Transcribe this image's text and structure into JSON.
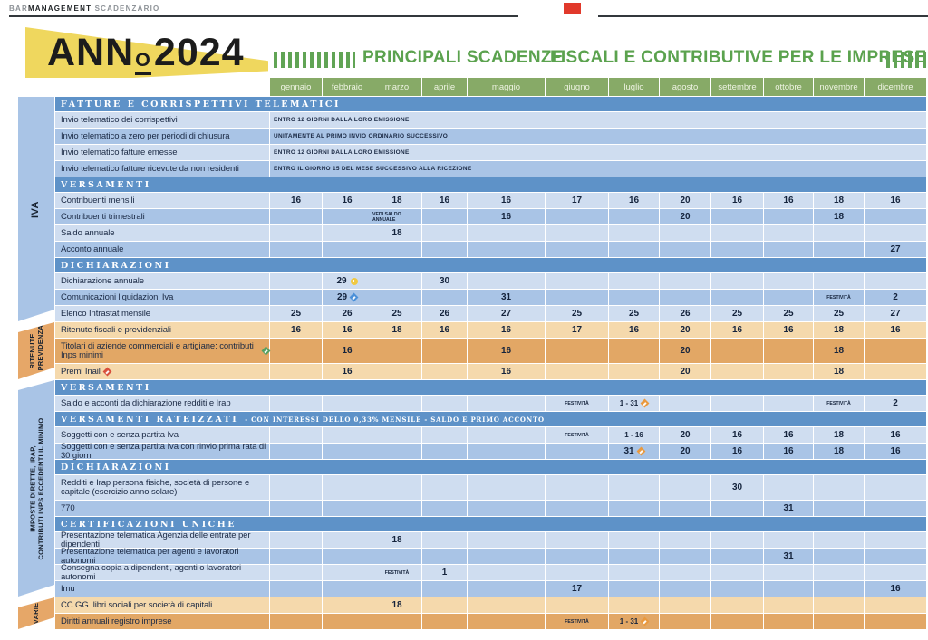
{
  "masthead": {
    "brand_prefix": "BAR",
    "brand_bold": "MANAGEMENT",
    "brand_suffix": " SCADENZARIO"
  },
  "title": {
    "year_word": "ANN",
    "year_ordinal": "O",
    "year": "2024",
    "heading_left": "PRINCIPALI SCADENZE",
    "heading_right": "FISCALI E CONTRIBUTIVE PER LE IMPRESE"
  },
  "colors": {
    "green": "#87aa67",
    "green_text": "#5ba24e",
    "yellow_pennant": "#efd75e",
    "blue_header": "#5e92c8",
    "blue_light": "#cfddf0",
    "blue_dark": "#a9c4e6",
    "orange_light": "#f5d9ac",
    "orange_dark": "#e2a765",
    "red_square": "#e1392b",
    "navy_text": "#1a2944"
  },
  "marker_colors": {
    "yellow": "#f0c943",
    "blue": "#4b90d8",
    "green": "#55a061",
    "red": "#d8503c",
    "orange": "#e9993f"
  },
  "calendar": {
    "months": [
      "gennaio",
      "febbraio",
      "marzo",
      "aprile",
      "maggio",
      "giugno",
      "luglio",
      "agosto",
      "settembre",
      "ottobre",
      "novembre",
      "dicembre"
    ],
    "row_groups": [
      {
        "label": "IVA",
        "theme": "blue",
        "big": true,
        "row_start": 0,
        "row_end": 13
      },
      {
        "label": "RITENUTE\nE PREVIDENZA",
        "theme": "orange",
        "row_start": 14,
        "row_end": 16
      },
      {
        "label": "IMPOSTE DIRETTE, IRAP,\nCONTRIBUTI INPS ECCEDENTI IL MINIMO",
        "theme": "blue",
        "row_start": 17,
        "row_end": 29
      },
      {
        "label": "VARIE",
        "theme": "orange",
        "row_start": 30,
        "row_end": 31
      }
    ],
    "rows": [
      {
        "type": "section",
        "theme": "blue",
        "label": "FATTURE E CORRISPETTIVI TELEMATICI"
      },
      {
        "type": "row",
        "theme": "blue",
        "shade": "light",
        "label": "Invio telematico dei corrispettivi",
        "note": "ENTRO 12 GIORNI DALLA LORO EMISSIONE"
      },
      {
        "type": "row",
        "theme": "blue",
        "shade": "dark",
        "label": "Invio telematico a zero per periodi di chiusura",
        "note": "UNITAMENTE AL PRIMO INVIO ORDINARIO SUCCESSIVO"
      },
      {
        "type": "row",
        "theme": "blue",
        "shade": "light",
        "label": "Invio telematico fatture emesse",
        "note": "ENTRO 12 GIORNI DALLA LORO EMISSIONE"
      },
      {
        "type": "row",
        "theme": "blue",
        "shade": "dark",
        "label": "Invio telematico fatture ricevute da non residenti",
        "note": "ENTRO IL GIORNO 15 DEL MESE SUCCESSIVO ALLA RICEZIONE"
      },
      {
        "type": "section",
        "theme": "blue",
        "label": "VERSAMENTI"
      },
      {
        "type": "row",
        "theme": "blue",
        "shade": "light",
        "label": "Contribuenti mensili",
        "cells": [
          "16",
          "16",
          "18",
          "16",
          "16",
          "17",
          "16",
          "20",
          "16",
          "16",
          "18",
          "16"
        ]
      },
      {
        "type": "row",
        "theme": "blue",
        "shade": "dark",
        "label": "Contribuenti trimestrali",
        "cells": [
          "",
          "",
          "VEDI SALDO ANNUALE",
          "",
          "16",
          "",
          "",
          "20",
          "",
          "",
          "18",
          ""
        ]
      },
      {
        "type": "row",
        "theme": "blue",
        "shade": "light",
        "label": "Saldo annuale",
        "cells": [
          "",
          "",
          "18",
          "",
          "",
          "",
          "",
          "",
          "",
          "",
          "",
          ""
        ]
      },
      {
        "type": "row",
        "theme": "blue",
        "shade": "dark",
        "label": "Acconto annuale",
        "cells": [
          "",
          "",
          "",
          "",
          "",
          "",
          "",
          "",
          "",
          "",
          "",
          "27"
        ]
      },
      {
        "type": "section",
        "theme": "blue",
        "label": "DICHIARAZIONI"
      },
      {
        "type": "row",
        "theme": "blue",
        "shade": "light",
        "label": "Dichiarazione annuale",
        "cells": [
          "",
          "29",
          "",
          "30",
          "",
          "",
          "",
          "",
          "",
          "",
          "",
          ""
        ],
        "cell_markers": {
          "1": "yellow"
        }
      },
      {
        "type": "row",
        "theme": "blue",
        "shade": "dark",
        "label": "Comunicazioni liquidazioni Iva",
        "cells": [
          "",
          "29",
          "",
          "",
          "31",
          "",
          "",
          "",
          "",
          "",
          "FESTIVITÀ",
          "2"
        ],
        "cell_markers": {
          "1": "blue"
        }
      },
      {
        "type": "row",
        "theme": "blue",
        "shade": "light",
        "label": "Elenco Intrastat mensile",
        "cells": [
          "25",
          "26",
          "25",
          "26",
          "27",
          "25",
          "25",
          "26",
          "25",
          "25",
          "25",
          "27"
        ]
      },
      {
        "type": "row",
        "theme": "orange",
        "shade": "light",
        "label": "Ritenute fiscali e previdenziali",
        "cells": [
          "16",
          "16",
          "18",
          "16",
          "16",
          "17",
          "16",
          "20",
          "16",
          "16",
          "18",
          "16"
        ]
      },
      {
        "type": "row",
        "theme": "orange",
        "shade": "dark",
        "tall": true,
        "label": "Titolari di aziende commerciali e artigiane: contributi Inps minimi",
        "label_marker": "green",
        "cells": [
          "",
          "16",
          "",
          "",
          "16",
          "",
          "",
          "20",
          "",
          "",
          "18",
          ""
        ]
      },
      {
        "type": "row",
        "theme": "orange",
        "shade": "light",
        "label": "Premi Inail",
        "label_marker": "red",
        "cells": [
          "",
          "16",
          "",
          "",
          "16",
          "",
          "",
          "20",
          "",
          "",
          "18",
          ""
        ]
      },
      {
        "type": "section",
        "theme": "blue",
        "label": "VERSAMENTI"
      },
      {
        "type": "row",
        "theme": "blue",
        "shade": "light",
        "label": "Saldo e acconti da dichiarazione redditi e Irap",
        "cells": [
          "",
          "",
          "",
          "",
          "",
          "FESTIVITÀ",
          "1 - 31",
          "",
          "",
          "",
          "FESTIVITÀ",
          "2"
        ],
        "cell_markers": {
          "6": "orange"
        }
      },
      {
        "type": "section",
        "theme": "blue",
        "label": "VERSAMENTI RATEIZZATI",
        "sublabel": "- CON INTERESSI DELLO 0,33% MENSILE - SALDO E PRIMO ACCONTO"
      },
      {
        "type": "row",
        "theme": "blue",
        "shade": "light",
        "label": "Soggetti con e senza partita Iva",
        "cells": [
          "",
          "",
          "",
          "",
          "",
          "FESTIVITÀ",
          "1 - 16",
          "20",
          "16",
          "16",
          "18",
          "16"
        ]
      },
      {
        "type": "row",
        "theme": "blue",
        "shade": "dark",
        "label": "Soggetti con e senza partita Iva con rinvio prima rata di 30 giorni",
        "cells": [
          "",
          "",
          "",
          "",
          "",
          "",
          "31",
          "20",
          "16",
          "16",
          "18",
          "16"
        ],
        "cell_markers": {
          "6": "orange"
        }
      },
      {
        "type": "section",
        "theme": "blue",
        "label": "DICHIARAZIONI"
      },
      {
        "type": "row",
        "theme": "blue",
        "shade": "light",
        "tall": true,
        "label": "Redditi e Irap persona fisiche, società di persone e capitale (esercizio anno solare)",
        "cells": [
          "",
          "",
          "",
          "",
          "",
          "",
          "",
          "",
          "30",
          "",
          "",
          ""
        ]
      },
      {
        "type": "row",
        "theme": "blue",
        "shade": "dark",
        "label": "770",
        "cells": [
          "",
          "",
          "",
          "",
          "",
          "",
          "",
          "",
          "",
          "31",
          "",
          ""
        ]
      },
      {
        "type": "section",
        "theme": "blue",
        "label": "CERTIFICAZIONI UNICHE"
      },
      {
        "type": "row",
        "theme": "blue",
        "shade": "light",
        "label": "Presentazione telematica Agenzia delle entrate per dipendenti",
        "cells": [
          "",
          "",
          "18",
          "",
          "",
          "",
          "",
          "",
          "",
          "",
          "",
          ""
        ]
      },
      {
        "type": "row",
        "theme": "blue",
        "shade": "dark",
        "label": "Presentazione telematica per agenti e lavoratori autonomi",
        "cells": [
          "",
          "",
          "",
          "",
          "",
          "",
          "",
          "",
          "",
          "31",
          "",
          ""
        ]
      },
      {
        "type": "row",
        "theme": "blue",
        "shade": "light",
        "label": "Consegna copia a dipendenti, agenti o lavoratori autonomi",
        "cells": [
          "",
          "",
          "FESTIVITÀ",
          "1",
          "",
          "",
          "",
          "",
          "",
          "",
          "",
          ""
        ]
      },
      {
        "type": "row",
        "theme": "blue",
        "shade": "dark",
        "label": "Imu",
        "cells": [
          "",
          "",
          "",
          "",
          "",
          "17",
          "",
          "",
          "",
          "",
          "",
          "16"
        ]
      },
      {
        "type": "row",
        "theme": "orange",
        "shade": "light",
        "label": "CC.GG. libri sociali per società di capitali",
        "cells": [
          "",
          "",
          "18",
          "",
          "",
          "",
          "",
          "",
          "",
          "",
          "",
          ""
        ]
      },
      {
        "type": "row",
        "theme": "orange",
        "shade": "dark",
        "label": "Diritti annuali registro imprese",
        "cells": [
          "",
          "",
          "",
          "",
          "",
          "FESTIVITÀ",
          "1 - 31",
          "",
          "",
          "",
          "",
          ""
        ],
        "cell_markers": {
          "6": "orange"
        }
      }
    ]
  }
}
